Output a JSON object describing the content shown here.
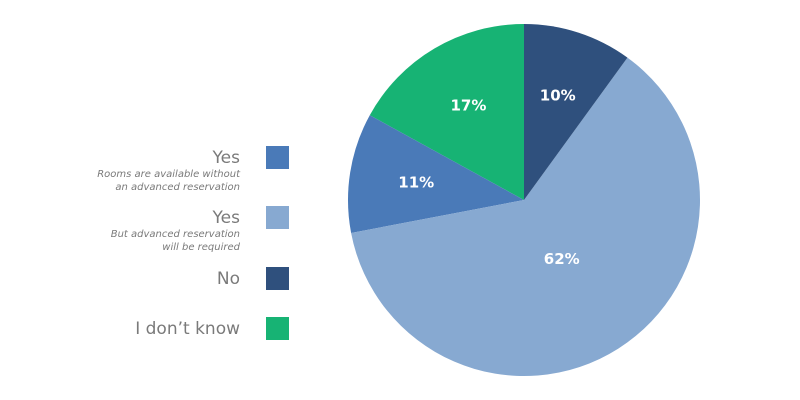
{
  "chart_data": {
    "type": "pie",
    "categories": [
      "Yes",
      "Yes",
      "No",
      "I don’t know"
    ],
    "descriptions": [
      [
        "Rooms are available without",
        "an advanced reservation"
      ],
      [
        "But advanced reservation",
        "will be required"
      ],
      null,
      null
    ],
    "values": [
      11,
      62,
      10,
      17
    ],
    "value_labels": [
      "11%",
      "62%",
      "10%",
      "17%"
    ],
    "colors": [
      "#4a7ab8",
      "#87a9d1",
      "#2f507d",
      "#17b374"
    ]
  }
}
